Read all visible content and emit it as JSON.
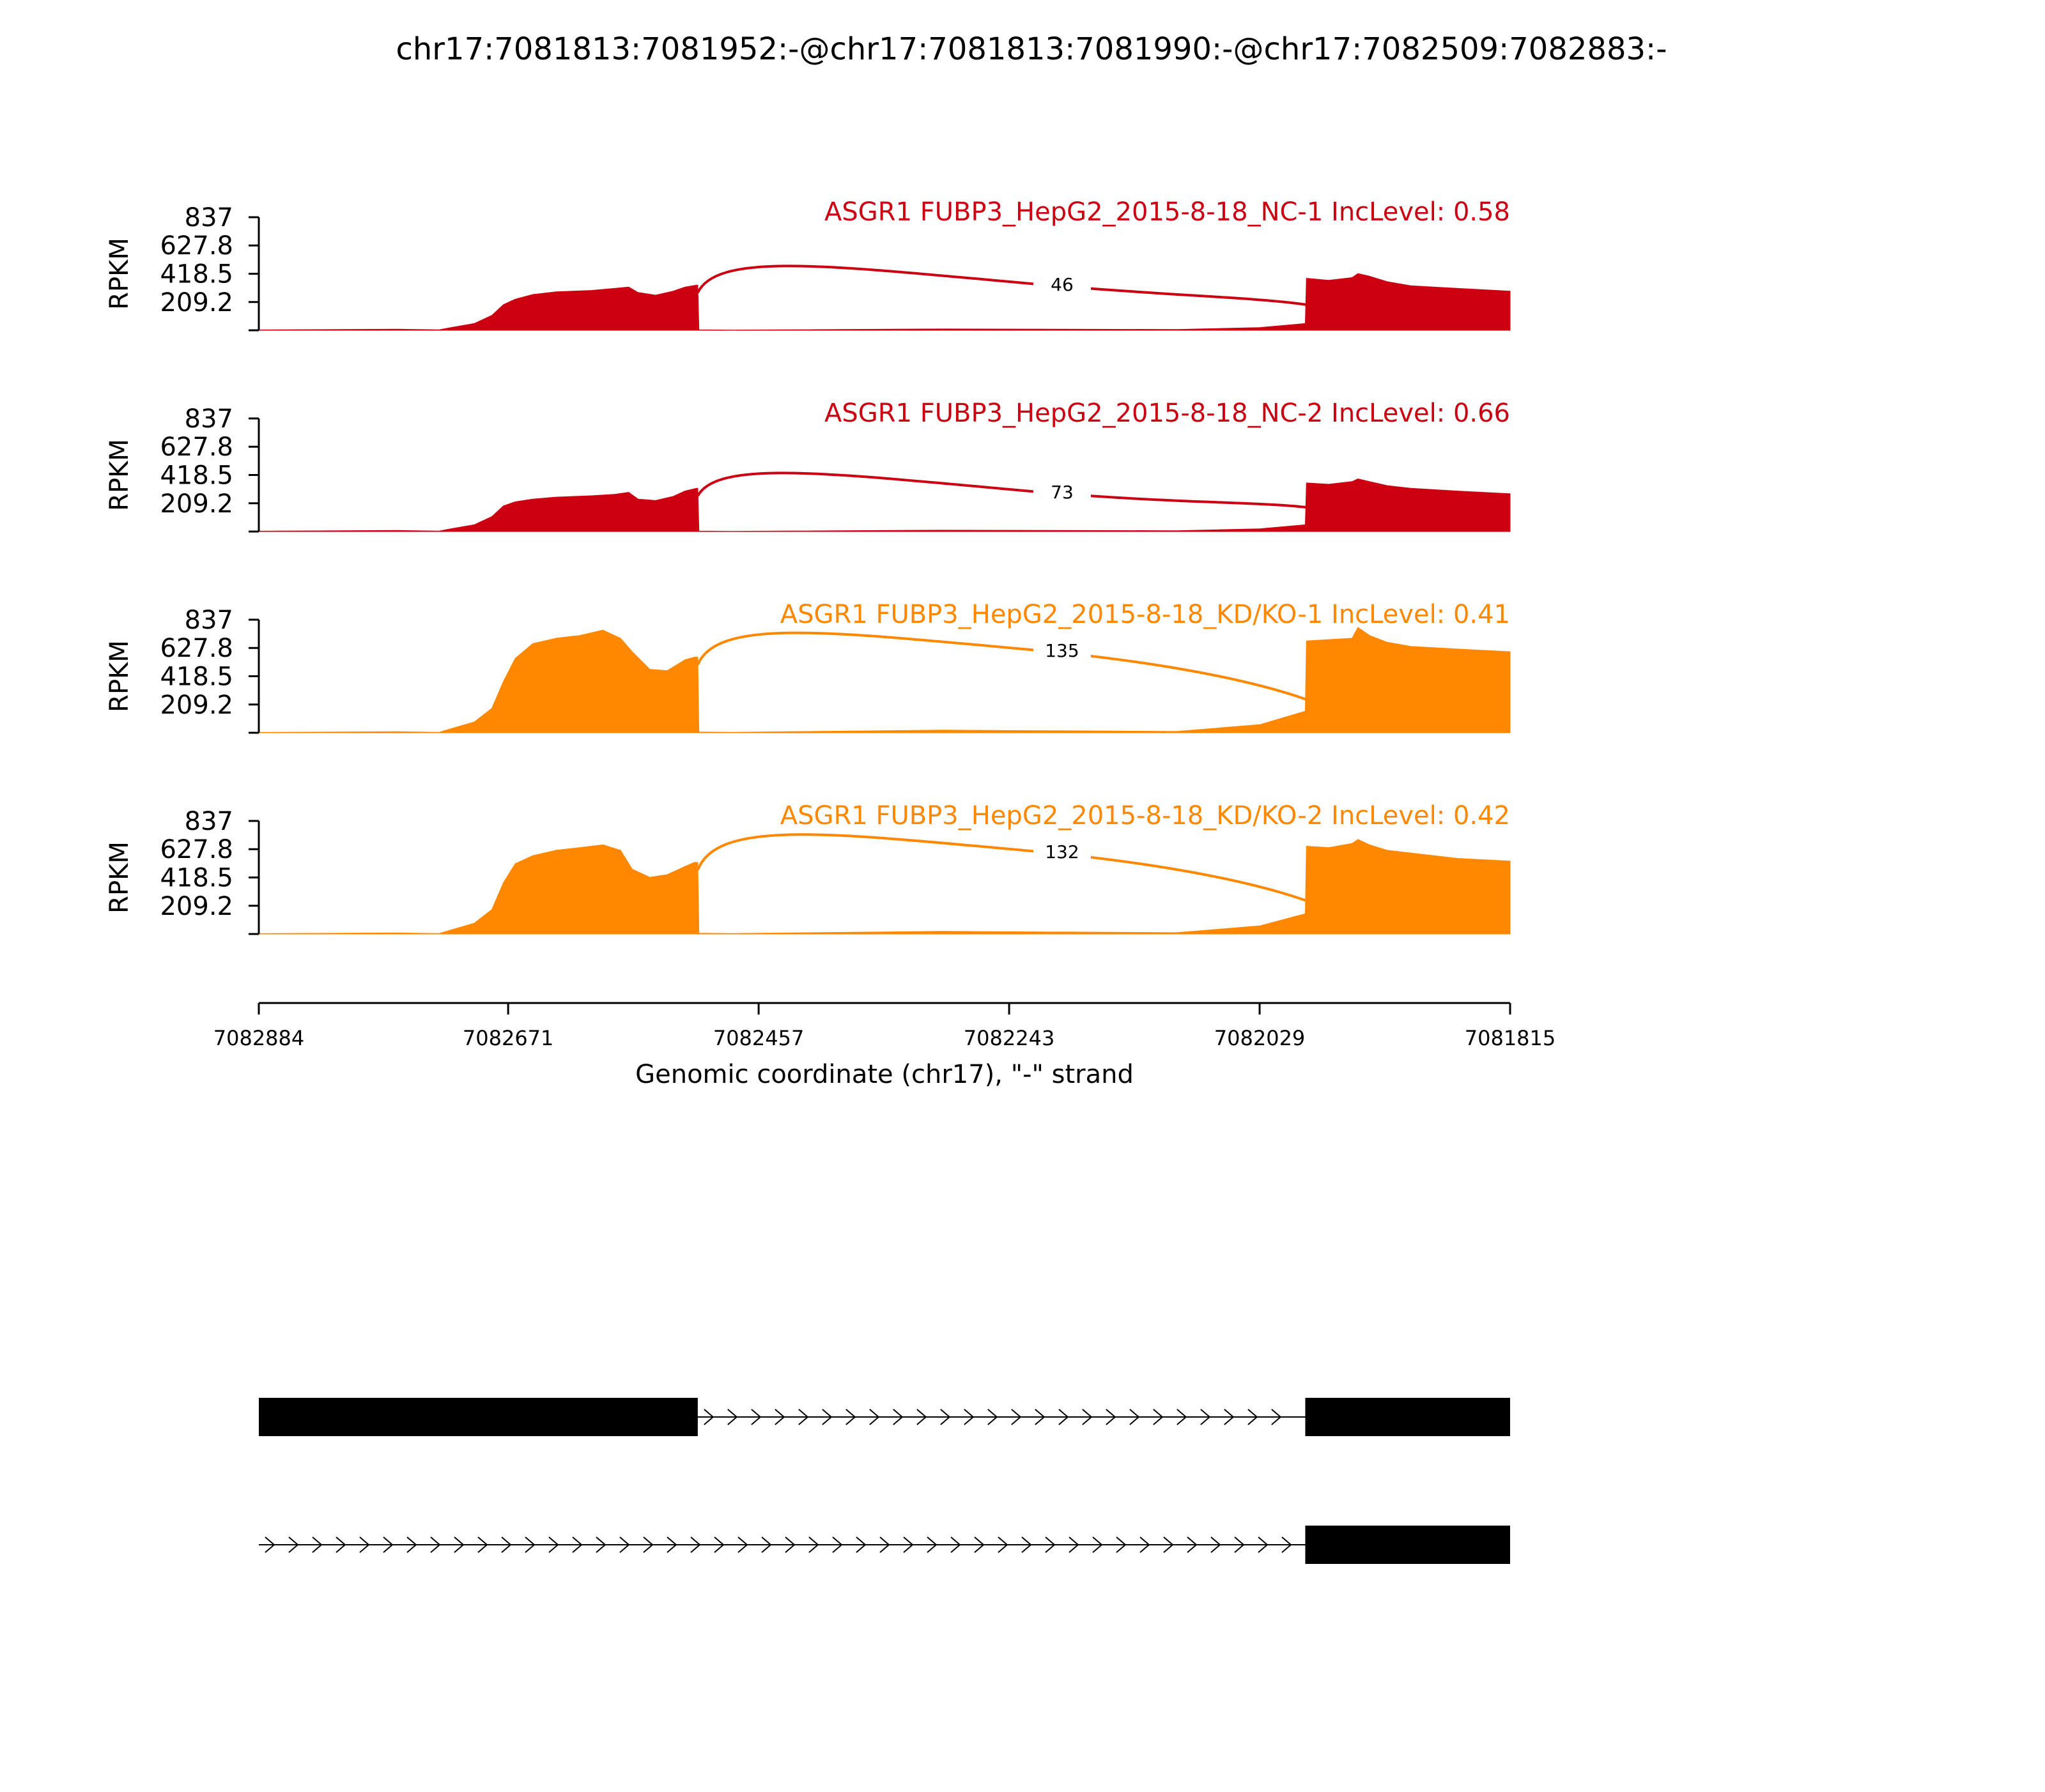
{
  "chart_data": {
    "type": "area",
    "title": "chr17:7081813:7081952:-@chr17:7081813:7081990:-@chr17:7082509:7082883:-",
    "ylabel": "RPKM",
    "xlabel": "Genomic coordinate (chr17), \"-\" strand",
    "x_ticks": [
      "7082884",
      "7082671",
      "7082457",
      "7082243",
      "7082029",
      "7081815"
    ],
    "xlim": [
      7082884,
      7081815
    ],
    "y_ticks": [
      "837",
      "627.8",
      "418.5",
      "209.2"
    ],
    "ylim": [
      0,
      837
    ],
    "tracks": [
      {
        "label": "ASGR1 FUBP3_HepG2_2015-8-18_NC-1 IncLevel: 0.58",
        "color": "#cc0011",
        "junction_count": "46",
        "coverage": [
          [
            7082884,
            3
          ],
          [
            7082765,
            8
          ],
          [
            7082730,
            4
          ],
          [
            7082720,
            20
          ],
          [
            7082700,
            50
          ],
          [
            7082685,
            110
          ],
          [
            7082675,
            190
          ],
          [
            7082665,
            230
          ],
          [
            7082650,
            265
          ],
          [
            7082630,
            285
          ],
          [
            7082600,
            295
          ],
          [
            7082580,
            310
          ],
          [
            7082568,
            320
          ],
          [
            7082560,
            280
          ],
          [
            7082545,
            260
          ],
          [
            7082530,
            290
          ],
          [
            7082520,
            320
          ],
          [
            7082510,
            335
          ],
          [
            7082509,
            335
          ],
          [
            7082508,
            4
          ],
          [
            7082480,
            2
          ],
          [
            7082300,
            10
          ],
          [
            7082100,
            6
          ],
          [
            7082029,
            20
          ],
          [
            7081990,
            50
          ],
          [
            7081989,
            385
          ],
          [
            7081970,
            370
          ],
          [
            7081950,
            390
          ],
          [
            7081945,
            420
          ],
          [
            7081935,
            400
          ],
          [
            7081920,
            360
          ],
          [
            7081900,
            330
          ],
          [
            7081860,
            310
          ],
          [
            7081815,
            290
          ]
        ]
      },
      {
        "label": "ASGR1 FUBP3_HepG2_2015-8-18_NC-2 IncLevel: 0.66",
        "color": "#cc0011",
        "junction_count": "73",
        "coverage": [
          [
            7082884,
            3
          ],
          [
            7082765,
            8
          ],
          [
            7082730,
            4
          ],
          [
            7082720,
            20
          ],
          [
            7082700,
            50
          ],
          [
            7082685,
            110
          ],
          [
            7082675,
            190
          ],
          [
            7082665,
            220
          ],
          [
            7082650,
            240
          ],
          [
            7082630,
            255
          ],
          [
            7082600,
            265
          ],
          [
            7082580,
            275
          ],
          [
            7082568,
            290
          ],
          [
            7082560,
            240
          ],
          [
            7082545,
            230
          ],
          [
            7082530,
            260
          ],
          [
            7082520,
            300
          ],
          [
            7082510,
            320
          ],
          [
            7082509,
            320
          ],
          [
            7082508,
            4
          ],
          [
            7082480,
            2
          ],
          [
            7082300,
            10
          ],
          [
            7082100,
            6
          ],
          [
            7082029,
            20
          ],
          [
            7081990,
            50
          ],
          [
            7081989,
            360
          ],
          [
            7081970,
            350
          ],
          [
            7081950,
            370
          ],
          [
            7081945,
            390
          ],
          [
            7081935,
            370
          ],
          [
            7081920,
            340
          ],
          [
            7081900,
            320
          ],
          [
            7081860,
            300
          ],
          [
            7081815,
            280
          ]
        ]
      },
      {
        "label": "ASGR1 FUBP3_HepG2_2015-8-18_KD/KO-1 IncLevel: 0.41",
        "color": "#ff8800",
        "junction_count": "135",
        "coverage": [
          [
            7082884,
            3
          ],
          [
            7082765,
            8
          ],
          [
            7082730,
            4
          ],
          [
            7082720,
            30
          ],
          [
            7082700,
            80
          ],
          [
            7082685,
            180
          ],
          [
            7082675,
            380
          ],
          [
            7082665,
            550
          ],
          [
            7082650,
            660
          ],
          [
            7082630,
            700
          ],
          [
            7082610,
            720
          ],
          [
            7082590,
            760
          ],
          [
            7082575,
            700
          ],
          [
            7082565,
            600
          ],
          [
            7082550,
            470
          ],
          [
            7082535,
            460
          ],
          [
            7082520,
            540
          ],
          [
            7082512,
            560
          ],
          [
            7082509,
            560
          ],
          [
            7082508,
            6
          ],
          [
            7082480,
            4
          ],
          [
            7082300,
            20
          ],
          [
            7082100,
            10
          ],
          [
            7082029,
            60
          ],
          [
            7081990,
            160
          ],
          [
            7081989,
            680
          ],
          [
            7081970,
            690
          ],
          [
            7081950,
            700
          ],
          [
            7081945,
            780
          ],
          [
            7081935,
            720
          ],
          [
            7081920,
            670
          ],
          [
            7081900,
            640
          ],
          [
            7081860,
            620
          ],
          [
            7081815,
            600
          ]
        ]
      },
      {
        "label": "ASGR1 FUBP3_HepG2_2015-8-18_KD/KO-2 IncLevel: 0.42",
        "color": "#ff8800",
        "junction_count": "132",
        "coverage": [
          [
            7082884,
            3
          ],
          [
            7082765,
            8
          ],
          [
            7082730,
            4
          ],
          [
            7082720,
            30
          ],
          [
            7082700,
            80
          ],
          [
            7082685,
            180
          ],
          [
            7082675,
            380
          ],
          [
            7082665,
            520
          ],
          [
            7082650,
            580
          ],
          [
            7082630,
            620
          ],
          [
            7082610,
            640
          ],
          [
            7082590,
            660
          ],
          [
            7082575,
            620
          ],
          [
            7082565,
            480
          ],
          [
            7082550,
            420
          ],
          [
            7082535,
            440
          ],
          [
            7082520,
            500
          ],
          [
            7082512,
            530
          ],
          [
            7082509,
            530
          ],
          [
            7082508,
            6
          ],
          [
            7082480,
            4
          ],
          [
            7082300,
            20
          ],
          [
            7082100,
            10
          ],
          [
            7082029,
            60
          ],
          [
            7081990,
            150
          ],
          [
            7081989,
            650
          ],
          [
            7081970,
            640
          ],
          [
            7081950,
            670
          ],
          [
            7081945,
            700
          ],
          [
            7081935,
            660
          ],
          [
            7081920,
            620
          ],
          [
            7081900,
            600
          ],
          [
            7081860,
            560
          ],
          [
            7081815,
            540
          ]
        ]
      }
    ],
    "junction": {
      "from": 7082509,
      "to": 7081952
    },
    "isoforms": [
      {
        "exons": [
          [
            7082884,
            7082509
          ],
          [
            7081990,
            7081815
          ]
        ]
      },
      {
        "exons": [
          [
            7081990,
            7081815
          ]
        ]
      }
    ]
  }
}
